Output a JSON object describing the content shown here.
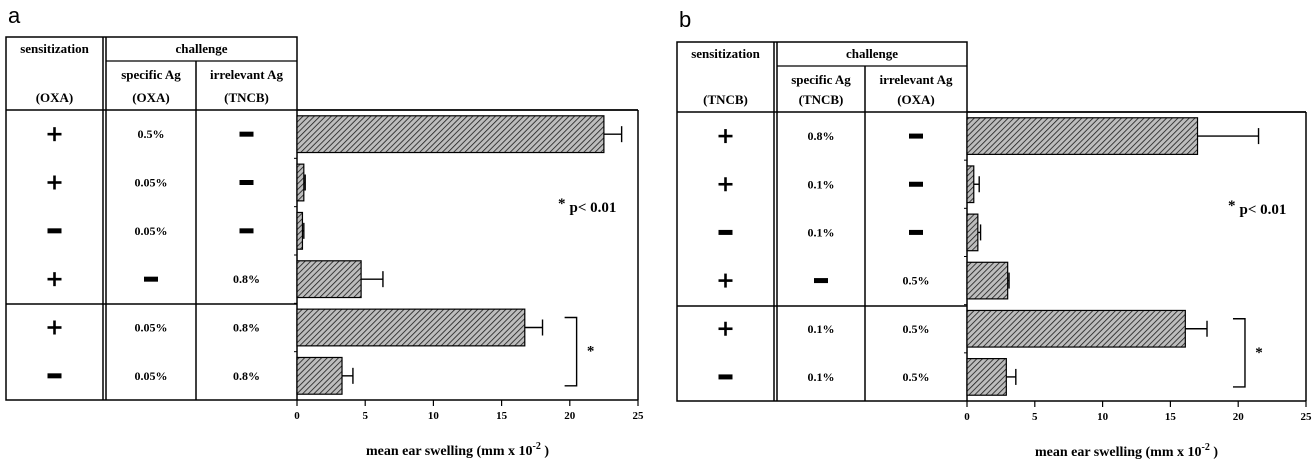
{
  "chart_data": [
    {
      "type": "bar",
      "panel_label": "a",
      "table": {
        "sensitization_header": "sensitization",
        "sensitization_sub": "(OXA)",
        "challenge_header": "challenge",
        "specific_header": "specific Ag",
        "specific_sub": "(OXA)",
        "irrelevant_header": "irrelevant Ag",
        "irrelevant_sub": "(TNCB)",
        "rows": [
          {
            "sens": "+",
            "spec": "0.5%",
            "irr": "–"
          },
          {
            "sens": "+",
            "spec": "0.05%",
            "irr": "–"
          },
          {
            "sens": "–",
            "spec": "0.05%",
            "irr": "–"
          },
          {
            "sens": "+",
            "spec": "–",
            "irr": "0.8%"
          },
          {
            "sens": "+",
            "spec": "0.05%",
            "irr": "0.8%"
          },
          {
            "sens": "–",
            "spec": "0.05%",
            "irr": "0.8%"
          }
        ]
      },
      "values": [
        22.5,
        0.5,
        0.4,
        4.7,
        16.7,
        3.3
      ],
      "errors": [
        1.3,
        0.1,
        0.1,
        1.6,
        1.3,
        0.8
      ],
      "xlim": [
        0,
        25
      ],
      "xticks": [
        "0",
        "5",
        "10",
        "15",
        "20",
        "25"
      ],
      "xlabel": "mean ear swelling  (mm x 10",
      "xlabel_sup": "-2",
      "xlabel_end": " )",
      "annotation": "p< 0.01",
      "star": "*"
    },
    {
      "type": "bar",
      "panel_label": "b",
      "table": {
        "sensitization_header": "sensitization",
        "sensitization_sub": "(TNCB)",
        "challenge_header": "challenge",
        "specific_header": "specific Ag",
        "specific_sub": "(TNCB)",
        "irrelevant_header": "irrelevant Ag",
        "irrelevant_sub": "(OXA)",
        "rows": [
          {
            "sens": "+",
            "spec": "0.8%",
            "irr": "–"
          },
          {
            "sens": "+",
            "spec": "0.1%",
            "irr": "–"
          },
          {
            "sens": "–",
            "spec": "0.1%",
            "irr": "–"
          },
          {
            "sens": "+",
            "spec": "–",
            "irr": "0.5%"
          },
          {
            "sens": "+",
            "spec": "0.1%",
            "irr": "0.5%"
          },
          {
            "sens": "–",
            "spec": "0.1%",
            "irr": "0.5%"
          }
        ]
      },
      "values": [
        17.0,
        0.5,
        0.8,
        3.0,
        16.1,
        2.9
      ],
      "errors": [
        4.5,
        0.4,
        0.2,
        0.1,
        1.6,
        0.7
      ],
      "xlim": [
        0,
        25
      ],
      "xticks": [
        "0",
        "5",
        "10",
        "15",
        "20",
        "25"
      ],
      "xlabel": "mean ear swelling  (mm x 10",
      "xlabel_sup": "-2",
      "xlabel_end": " )",
      "annotation": "p< 0.01",
      "star": "*"
    }
  ]
}
